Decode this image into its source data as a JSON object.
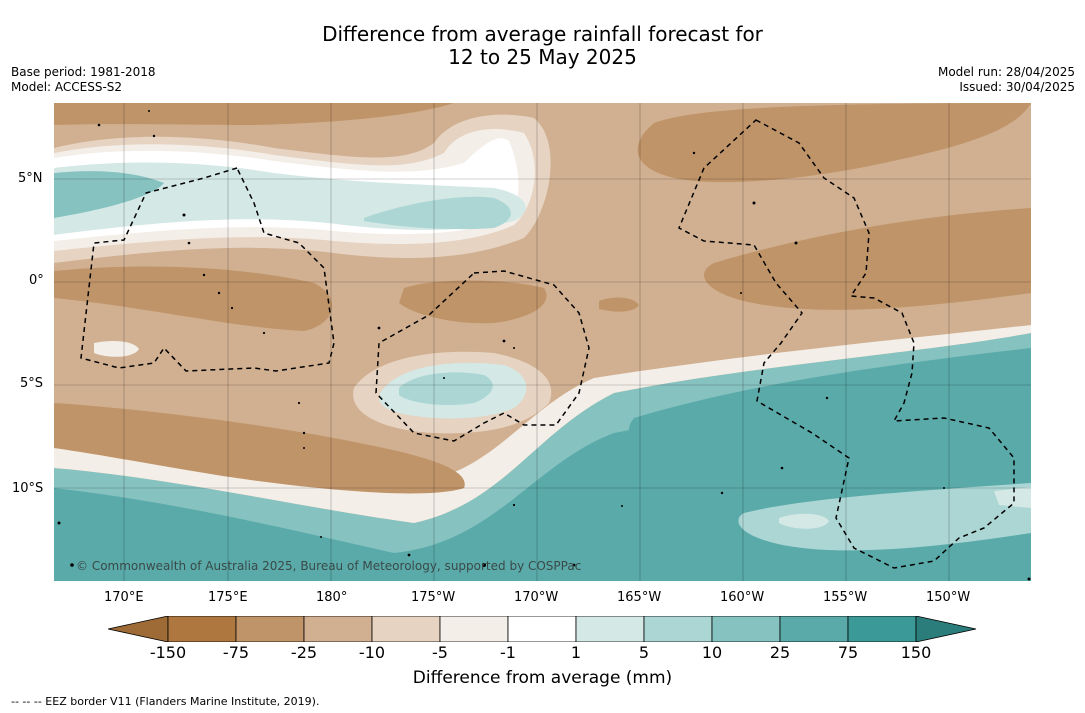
{
  "title": {
    "line1": "Difference from average rainfall forecast for",
    "line2": "12 to 25 May 2025"
  },
  "info_left": {
    "base_period": "Base period: 1981-2018",
    "model": "Model: ACCESS-S2"
  },
  "info_right": {
    "model_run": "Model run: 28/04/2025",
    "issued": "Issued: 30/04/2025"
  },
  "map": {
    "copyright": "© Commonwealth of Australia 2025, Bureau of Meteorology, supported by COSPPac",
    "lat_labels": [
      "5°N",
      "0°",
      "5°S",
      "10°S"
    ],
    "lon_labels": [
      "170°E",
      "175°E",
      "180°",
      "175°W",
      "170°W",
      "165°W",
      "160°W",
      "155°W",
      "150°W"
    ]
  },
  "colorbar": {
    "labels": [
      "-150",
      "-75",
      "-25",
      "-10",
      "-5",
      "-1",
      "1",
      "5",
      "10",
      "25",
      "75",
      "150"
    ],
    "colors": [
      "#9e6a35",
      "#ad773f",
      "#bf9469",
      "#d1b091",
      "#e6d3c2",
      "#f4eee8",
      "#ffffff",
      "#d4e8e6",
      "#abd6d4",
      "#85c2c0",
      "#5aaaaa",
      "#3b9a98",
      "#2b7d7c"
    ],
    "title": "Difference from average (mm)"
  },
  "footer": {
    "legend": "--  --  -- EEZ border V11 (Flanders Marine Institute, 2019)."
  }
}
